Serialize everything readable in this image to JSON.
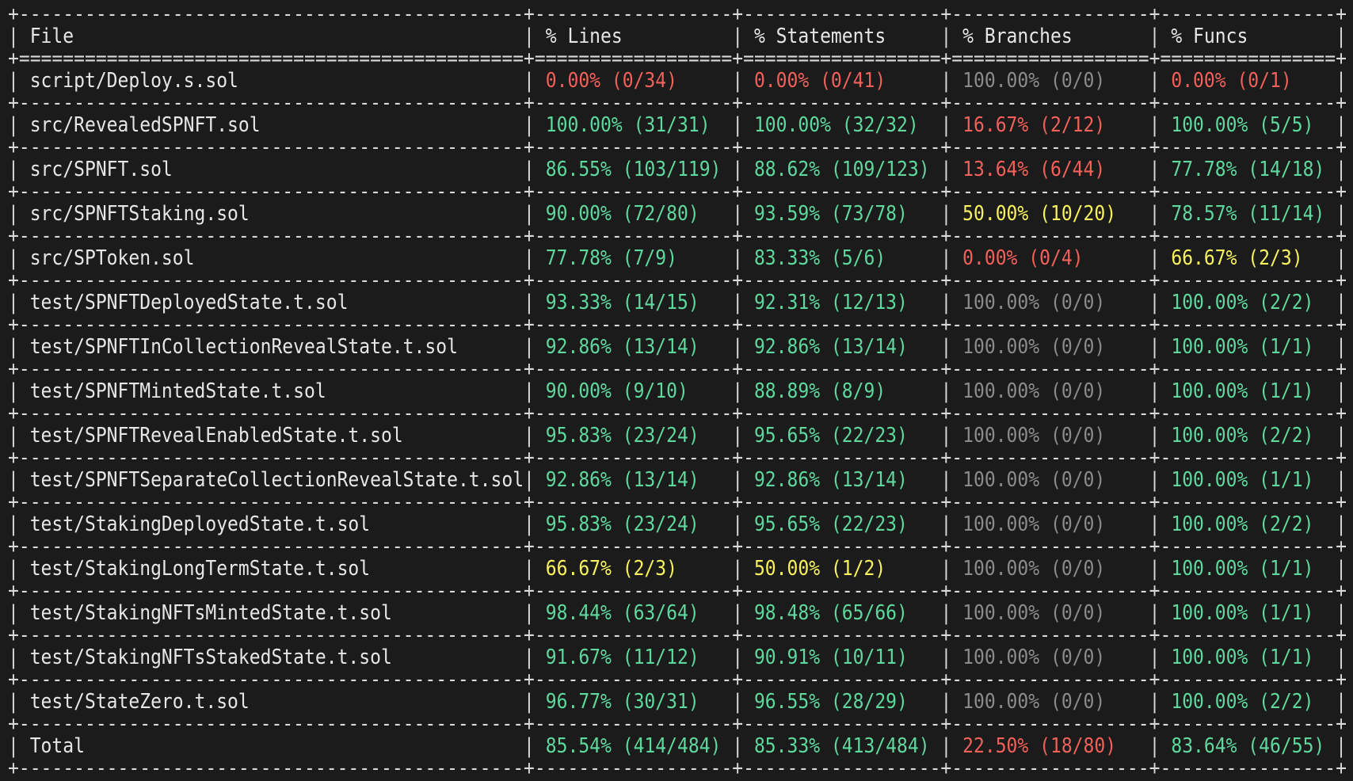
{
  "columns": [
    "File",
    "% Lines",
    "% Statements",
    "% Branches",
    "% Funcs"
  ],
  "colors": {
    "background": "#1b1b1b",
    "text": "#e6e6e6",
    "green": "#5fd89e",
    "red": "#f2605a",
    "yellow": "#f7f25d",
    "gray": "#8b8b8b"
  },
  "rows": [
    {
      "file": "script/Deploy.s.sol",
      "lines": {
        "text": "0.00% (0/34)",
        "status": "red"
      },
      "statements": {
        "text": "0.00% (0/41)",
        "status": "red"
      },
      "branches": {
        "text": "100.00% (0/0)",
        "status": "gray"
      },
      "funcs": {
        "text": "0.00% (0/1)",
        "status": "red"
      }
    },
    {
      "file": "src/RevealedSPNFT.sol",
      "lines": {
        "text": "100.00% (31/31)",
        "status": "green"
      },
      "statements": {
        "text": "100.00% (32/32)",
        "status": "green"
      },
      "branches": {
        "text": "16.67% (2/12)",
        "status": "red"
      },
      "funcs": {
        "text": "100.00% (5/5)",
        "status": "green"
      }
    },
    {
      "file": "src/SPNFT.sol",
      "lines": {
        "text": "86.55% (103/119)",
        "status": "green"
      },
      "statements": {
        "text": "88.62% (109/123)",
        "status": "green"
      },
      "branches": {
        "text": "13.64% (6/44)",
        "status": "red"
      },
      "funcs": {
        "text": "77.78% (14/18)",
        "status": "green"
      }
    },
    {
      "file": "src/SPNFTStaking.sol",
      "lines": {
        "text": "90.00% (72/80)",
        "status": "green"
      },
      "statements": {
        "text": "93.59% (73/78)",
        "status": "green"
      },
      "branches": {
        "text": "50.00% (10/20)",
        "status": "yellow"
      },
      "funcs": {
        "text": "78.57% (11/14)",
        "status": "green"
      }
    },
    {
      "file": "src/SPToken.sol",
      "lines": {
        "text": "77.78% (7/9)",
        "status": "green"
      },
      "statements": {
        "text": "83.33% (5/6)",
        "status": "green"
      },
      "branches": {
        "text": "0.00% (0/4)",
        "status": "red"
      },
      "funcs": {
        "text": "66.67% (2/3)",
        "status": "yellow"
      }
    },
    {
      "file": "test/SPNFTDeployedState.t.sol",
      "lines": {
        "text": "93.33% (14/15)",
        "status": "green"
      },
      "statements": {
        "text": "92.31% (12/13)",
        "status": "green"
      },
      "branches": {
        "text": "100.00% (0/0)",
        "status": "gray"
      },
      "funcs": {
        "text": "100.00% (2/2)",
        "status": "green"
      }
    },
    {
      "file": "test/SPNFTInCollectionRevealState.t.sol",
      "lines": {
        "text": "92.86% (13/14)",
        "status": "green"
      },
      "statements": {
        "text": "92.86% (13/14)",
        "status": "green"
      },
      "branches": {
        "text": "100.00% (0/0)",
        "status": "gray"
      },
      "funcs": {
        "text": "100.00% (1/1)",
        "status": "green"
      }
    },
    {
      "file": "test/SPNFTMintedState.t.sol",
      "lines": {
        "text": "90.00% (9/10)",
        "status": "green"
      },
      "statements": {
        "text": "88.89% (8/9)",
        "status": "green"
      },
      "branches": {
        "text": "100.00% (0/0)",
        "status": "gray"
      },
      "funcs": {
        "text": "100.00% (1/1)",
        "status": "green"
      }
    },
    {
      "file": "test/SPNFTRevealEnabledState.t.sol",
      "lines": {
        "text": "95.83% (23/24)",
        "status": "green"
      },
      "statements": {
        "text": "95.65% (22/23)",
        "status": "green"
      },
      "branches": {
        "text": "100.00% (0/0)",
        "status": "gray"
      },
      "funcs": {
        "text": "100.00% (2/2)",
        "status": "green"
      }
    },
    {
      "file": "test/SPNFTSeparateCollectionRevealState.t.sol",
      "lines": {
        "text": "92.86% (13/14)",
        "status": "green"
      },
      "statements": {
        "text": "92.86% (13/14)",
        "status": "green"
      },
      "branches": {
        "text": "100.00% (0/0)",
        "status": "gray"
      },
      "funcs": {
        "text": "100.00% (1/1)",
        "status": "green"
      }
    },
    {
      "file": "test/StakingDeployedState.t.sol",
      "lines": {
        "text": "95.83% (23/24)",
        "status": "green"
      },
      "statements": {
        "text": "95.65% (22/23)",
        "status": "green"
      },
      "branches": {
        "text": "100.00% (0/0)",
        "status": "gray"
      },
      "funcs": {
        "text": "100.00% (2/2)",
        "status": "green"
      }
    },
    {
      "file": "test/StakingLongTermState.t.sol",
      "lines": {
        "text": "66.67% (2/3)",
        "status": "yellow"
      },
      "statements": {
        "text": "50.00% (1/2)",
        "status": "yellow"
      },
      "branches": {
        "text": "100.00% (0/0)",
        "status": "gray"
      },
      "funcs": {
        "text": "100.00% (1/1)",
        "status": "green"
      }
    },
    {
      "file": "test/StakingNFTsMintedState.t.sol",
      "lines": {
        "text": "98.44% (63/64)",
        "status": "green"
      },
      "statements": {
        "text": "98.48% (65/66)",
        "status": "green"
      },
      "branches": {
        "text": "100.00% (0/0)",
        "status": "gray"
      },
      "funcs": {
        "text": "100.00% (1/1)",
        "status": "green"
      }
    },
    {
      "file": "test/StakingNFTsStakedState.t.sol",
      "lines": {
        "text": "91.67% (11/12)",
        "status": "green"
      },
      "statements": {
        "text": "90.91% (10/11)",
        "status": "green"
      },
      "branches": {
        "text": "100.00% (0/0)",
        "status": "gray"
      },
      "funcs": {
        "text": "100.00% (1/1)",
        "status": "green"
      }
    },
    {
      "file": "test/StateZero.t.sol",
      "lines": {
        "text": "96.77% (30/31)",
        "status": "green"
      },
      "statements": {
        "text": "96.55% (28/29)",
        "status": "green"
      },
      "branches": {
        "text": "100.00% (0/0)",
        "status": "gray"
      },
      "funcs": {
        "text": "100.00% (2/2)",
        "status": "green"
      }
    },
    {
      "file": "Total",
      "lines": {
        "text": "85.54% (414/484)",
        "status": "green"
      },
      "statements": {
        "text": "85.33% (413/484)",
        "status": "green"
      },
      "branches": {
        "text": "22.50% (18/80)",
        "status": "red"
      },
      "funcs": {
        "text": "83.64% (46/55)",
        "status": "green"
      }
    }
  ]
}
